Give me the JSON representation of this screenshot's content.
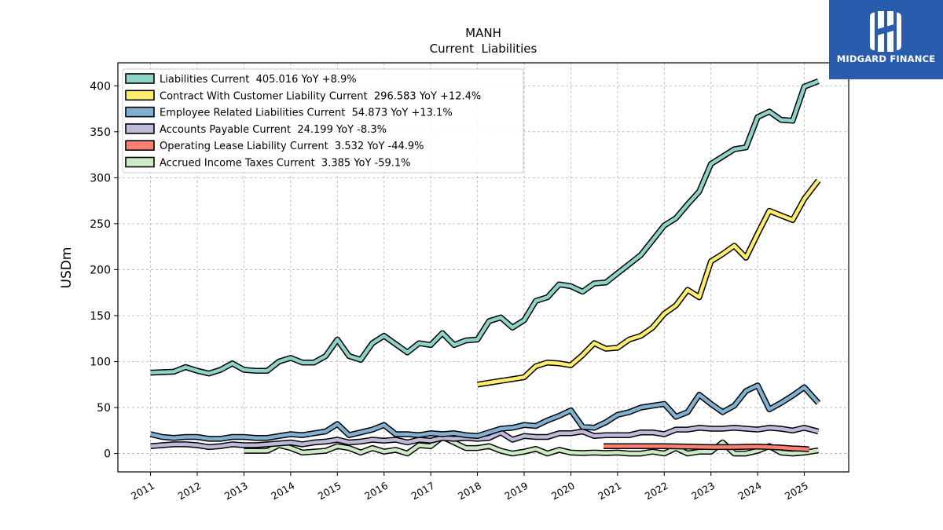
{
  "chart_data": {
    "type": "line",
    "title": "MANH",
    "subtitle": "Current  Liabilities",
    "xlabel": "",
    "ylabel": "USDm",
    "ylim": [
      -20,
      425
    ],
    "xlim": [
      2010.3,
      2025.95
    ],
    "x_ticks": [
      2011,
      2012,
      2013,
      2014,
      2015,
      2016,
      2017,
      2018,
      2019,
      2020,
      2021,
      2022,
      2023,
      2024,
      2025
    ],
    "y_ticks": [
      0,
      50,
      100,
      150,
      200,
      250,
      300,
      350,
      400
    ],
    "grid": true,
    "legend_position": "top-left",
    "series": [
      {
        "name": "Liabilities Current",
        "legend": "Liabilities Current  405.016 YoY +8.9%",
        "color": "#8dd3c7",
        "points": [
          [
            2011.0,
            88
          ],
          [
            2011.25,
            88.5
          ],
          [
            2011.5,
            89
          ],
          [
            2011.75,
            94
          ],
          [
            2012.0,
            90
          ],
          [
            2012.25,
            87
          ],
          [
            2012.5,
            91
          ],
          [
            2012.75,
            98
          ],
          [
            2013.0,
            91
          ],
          [
            2013.25,
            90
          ],
          [
            2013.5,
            90
          ],
          [
            2013.75,
            100
          ],
          [
            2014.0,
            104
          ],
          [
            2014.25,
            99
          ],
          [
            2014.5,
            99
          ],
          [
            2014.75,
            106
          ],
          [
            2015.0,
            124
          ],
          [
            2015.25,
            106
          ],
          [
            2015.5,
            102
          ],
          [
            2015.75,
            120
          ],
          [
            2016.0,
            128
          ],
          [
            2016.25,
            119
          ],
          [
            2016.5,
            110
          ],
          [
            2016.75,
            120
          ],
          [
            2017.0,
            118
          ],
          [
            2017.25,
            131
          ],
          [
            2017.5,
            118
          ],
          [
            2017.75,
            123
          ],
          [
            2018.0,
            124
          ],
          [
            2018.25,
            144
          ],
          [
            2018.5,
            148
          ],
          [
            2018.75,
            137
          ],
          [
            2019.0,
            145
          ],
          [
            2019.25,
            166
          ],
          [
            2019.5,
            170
          ],
          [
            2019.75,
            184
          ],
          [
            2020.0,
            182
          ],
          [
            2020.25,
            176
          ],
          [
            2020.5,
            185
          ],
          [
            2020.75,
            186
          ],
          [
            2021.0,
            196
          ],
          [
            2021.25,
            206
          ],
          [
            2021.5,
            216
          ],
          [
            2021.75,
            232
          ],
          [
            2022.0,
            248
          ],
          [
            2022.25,
            256
          ],
          [
            2022.5,
            271
          ],
          [
            2022.75,
            285
          ],
          [
            2023.0,
            315
          ],
          [
            2023.25,
            323
          ],
          [
            2023.5,
            331
          ],
          [
            2023.75,
            333
          ],
          [
            2024.0,
            366
          ],
          [
            2024.25,
            372
          ],
          [
            2024.5,
            363
          ],
          [
            2024.75,
            362
          ],
          [
            2025.0,
            399
          ],
          [
            2025.3,
            405
          ]
        ]
      },
      {
        "name": "Contract With Customer Liability Current",
        "legend": "Contract With Customer Liability Current  296.583 YoY +12.4%",
        "color": "#ffed6f",
        "points": [
          [
            2018.0,
            75
          ],
          [
            2018.25,
            77
          ],
          [
            2018.5,
            79
          ],
          [
            2018.75,
            81
          ],
          [
            2019.0,
            83
          ],
          [
            2019.25,
            95
          ],
          [
            2019.5,
            99
          ],
          [
            2019.75,
            98
          ],
          [
            2020.0,
            96
          ],
          [
            2020.25,
            107
          ],
          [
            2020.5,
            120
          ],
          [
            2020.75,
            114
          ],
          [
            2021.0,
            115
          ],
          [
            2021.25,
            124
          ],
          [
            2021.5,
            128
          ],
          [
            2021.75,
            137
          ],
          [
            2022.0,
            152
          ],
          [
            2022.25,
            161
          ],
          [
            2022.5,
            178
          ],
          [
            2022.75,
            170
          ],
          [
            2023.0,
            209
          ],
          [
            2023.25,
            217
          ],
          [
            2023.5,
            226
          ],
          [
            2023.75,
            213
          ],
          [
            2024.0,
            239
          ],
          [
            2024.25,
            264
          ],
          [
            2024.5,
            259
          ],
          [
            2024.75,
            254
          ],
          [
            2025.0,
            277
          ],
          [
            2025.3,
            297
          ]
        ]
      },
      {
        "name": "Employee Related Liabilities Current",
        "legend": "Employee Related Liabilities Current  54.873 YoY +13.1%",
        "color": "#80b1d3",
        "points": [
          [
            2011.0,
            21
          ],
          [
            2011.25,
            18
          ],
          [
            2011.5,
            17
          ],
          [
            2011.75,
            18
          ],
          [
            2012.0,
            18
          ],
          [
            2012.25,
            16
          ],
          [
            2012.5,
            16
          ],
          [
            2012.75,
            18
          ],
          [
            2013.0,
            18
          ],
          [
            2013.25,
            17
          ],
          [
            2013.5,
            17
          ],
          [
            2013.75,
            19
          ],
          [
            2014.0,
            21
          ],
          [
            2014.25,
            20
          ],
          [
            2014.5,
            22
          ],
          [
            2014.75,
            24
          ],
          [
            2015.0,
            32
          ],
          [
            2015.25,
            20
          ],
          [
            2015.5,
            23
          ],
          [
            2015.75,
            26
          ],
          [
            2016.0,
            31
          ],
          [
            2016.25,
            21
          ],
          [
            2016.5,
            21
          ],
          [
            2016.75,
            20
          ],
          [
            2017.0,
            22
          ],
          [
            2017.25,
            21
          ],
          [
            2017.5,
            22
          ],
          [
            2017.75,
            20
          ],
          [
            2018.0,
            19
          ],
          [
            2018.25,
            23
          ],
          [
            2018.5,
            27
          ],
          [
            2018.75,
            28
          ],
          [
            2019.0,
            31
          ],
          [
            2019.25,
            30
          ],
          [
            2019.5,
            36
          ],
          [
            2019.75,
            41
          ],
          [
            2020.0,
            47
          ],
          [
            2020.25,
            29
          ],
          [
            2020.5,
            28
          ],
          [
            2020.75,
            34
          ],
          [
            2021.0,
            42
          ],
          [
            2021.25,
            45
          ],
          [
            2021.5,
            50
          ],
          [
            2021.75,
            52
          ],
          [
            2022.0,
            54
          ],
          [
            2022.25,
            40
          ],
          [
            2022.5,
            45
          ],
          [
            2022.75,
            64
          ],
          [
            2023.0,
            54
          ],
          [
            2023.25,
            45
          ],
          [
            2023.5,
            52
          ],
          [
            2023.75,
            68
          ],
          [
            2024.0,
            74
          ],
          [
            2024.25,
            48
          ],
          [
            2024.5,
            55
          ],
          [
            2024.75,
            63
          ],
          [
            2025.0,
            72
          ],
          [
            2025.3,
            55
          ]
        ]
      },
      {
        "name": "Accounts Payable Current",
        "legend": "Accounts Payable Current  24.199 YoY -8.3%",
        "color": "#bebada",
        "points": [
          [
            2011.0,
            8
          ],
          [
            2011.25,
            9
          ],
          [
            2011.5,
            10
          ],
          [
            2011.75,
            10
          ],
          [
            2012.0,
            9
          ],
          [
            2012.25,
            7
          ],
          [
            2012.5,
            8
          ],
          [
            2012.75,
            10
          ],
          [
            2013.0,
            9
          ],
          [
            2013.25,
            9
          ],
          [
            2013.5,
            10
          ],
          [
            2013.75,
            11
          ],
          [
            2014.0,
            12
          ],
          [
            2014.25,
            10
          ],
          [
            2014.5,
            12
          ],
          [
            2014.75,
            13
          ],
          [
            2015.0,
            15
          ],
          [
            2015.25,
            12
          ],
          [
            2015.5,
            13
          ],
          [
            2015.75,
            15
          ],
          [
            2016.0,
            14
          ],
          [
            2016.25,
            15
          ],
          [
            2016.5,
            12
          ],
          [
            2016.75,
            15
          ],
          [
            2017.0,
            14
          ],
          [
            2017.25,
            17
          ],
          [
            2017.5,
            16
          ],
          [
            2017.75,
            17
          ],
          [
            2018.0,
            16
          ],
          [
            2018.25,
            17
          ],
          [
            2018.5,
            23
          ],
          [
            2018.75,
            15
          ],
          [
            2019.0,
            19
          ],
          [
            2019.25,
            18
          ],
          [
            2019.5,
            18
          ],
          [
            2019.75,
            22
          ],
          [
            2020.0,
            22
          ],
          [
            2020.25,
            24
          ],
          [
            2020.5,
            19
          ],
          [
            2020.75,
            20
          ],
          [
            2021.0,
            20
          ],
          [
            2021.25,
            20
          ],
          [
            2021.5,
            23
          ],
          [
            2021.75,
            23
          ],
          [
            2022.0,
            21
          ],
          [
            2022.25,
            26
          ],
          [
            2022.5,
            26
          ],
          [
            2022.75,
            28
          ],
          [
            2023.0,
            27
          ],
          [
            2023.25,
            27
          ],
          [
            2023.5,
            28
          ],
          [
            2023.75,
            27
          ],
          [
            2024.0,
            26
          ],
          [
            2024.25,
            28
          ],
          [
            2024.5,
            27
          ],
          [
            2024.75,
            25
          ],
          [
            2025.0,
            28
          ],
          [
            2025.3,
            24
          ]
        ]
      },
      {
        "name": "Operating Lease Liability Current",
        "legend": "Operating Lease Liability Current  3.532 YoY -44.9%",
        "color": "#fb8072",
        "points": [
          [
            2020.7,
            8
          ],
          [
            2021.0,
            8
          ],
          [
            2021.5,
            8
          ],
          [
            2022.0,
            8
          ],
          [
            2022.5,
            7.5
          ],
          [
            2023.0,
            7
          ],
          [
            2023.5,
            7
          ],
          [
            2024.0,
            7.5
          ],
          [
            2024.25,
            7
          ],
          [
            2024.5,
            6.5
          ],
          [
            2024.75,
            5.5
          ],
          [
            2025.0,
            5
          ],
          [
            2025.1,
            4.5
          ]
        ]
      },
      {
        "name": "Accrued Income Taxes Current",
        "legend": "Accrued Income Taxes Current  3.385 YoY -59.1%",
        "color": "#ccebc5",
        "points": [
          [
            2013.0,
            3
          ],
          [
            2013.25,
            3
          ],
          [
            2013.5,
            3
          ],
          [
            2013.75,
            9
          ],
          [
            2014.0,
            6
          ],
          [
            2014.25,
            1
          ],
          [
            2014.5,
            2
          ],
          [
            2014.75,
            3
          ],
          [
            2015.0,
            8
          ],
          [
            2015.25,
            6
          ],
          [
            2015.5,
            1
          ],
          [
            2015.75,
            6
          ],
          [
            2016.0,
            2
          ],
          [
            2016.25,
            4
          ],
          [
            2016.5,
            0
          ],
          [
            2016.75,
            9
          ],
          [
            2017.0,
            8
          ],
          [
            2017.25,
            18
          ],
          [
            2017.5,
            12
          ],
          [
            2017.75,
            6
          ],
          [
            2018.0,
            6
          ],
          [
            2018.25,
            8
          ],
          [
            2018.5,
            3
          ],
          [
            2018.75,
            0
          ],
          [
            2019.0,
            2
          ],
          [
            2019.25,
            5
          ],
          [
            2019.5,
            0
          ],
          [
            2019.75,
            4
          ],
          [
            2020.0,
            1
          ],
          [
            2020.25,
            0.5
          ],
          [
            2020.5,
            1
          ],
          [
            2020.75,
            0.5
          ],
          [
            2021.0,
            1
          ],
          [
            2021.25,
            0
          ],
          [
            2021.5,
            0
          ],
          [
            2021.75,
            2
          ],
          [
            2022.0,
            0
          ],
          [
            2022.25,
            6
          ],
          [
            2022.5,
            0
          ],
          [
            2022.75,
            2
          ],
          [
            2023.0,
            2
          ],
          [
            2023.25,
            12
          ],
          [
            2023.5,
            0
          ],
          [
            2023.75,
            0
          ],
          [
            2024.0,
            3
          ],
          [
            2024.25,
            8
          ],
          [
            2024.5,
            1
          ],
          [
            2024.75,
            0
          ],
          [
            2025.0,
            1
          ],
          [
            2025.3,
            3.4
          ]
        ]
      }
    ]
  },
  "logo": {
    "text": "MIDGARD FINANCE"
  }
}
